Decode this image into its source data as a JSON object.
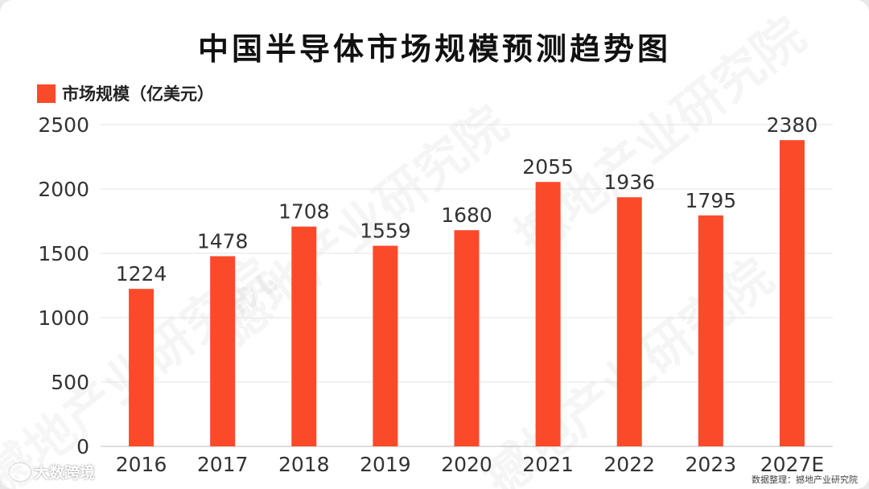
{
  "title": "中国半导体市场规模预测趋势图",
  "legend_label": "市场规模（亿美元）",
  "source": "数据整理：撼地产业研究院",
  "footer_brand": "大数跨境",
  "watermark_text": "撼地产业研究院",
  "colors": {
    "bar": "#fb4a2a",
    "grid": "#e3e3e3",
    "text": "#333333"
  },
  "chart_data": {
    "type": "bar",
    "title": "中国半导体市场规模预测趋势图",
    "categories": [
      "2016",
      "2017",
      "2018",
      "2019",
      "2020",
      "2021",
      "2022",
      "2023",
      "2027E"
    ],
    "series": [
      {
        "name": "市场规模（亿美元）",
        "values": [
          1224,
          1478,
          1708,
          1559,
          1680,
          2055,
          1936,
          1795,
          2380
        ]
      }
    ],
    "ylim": [
      0,
      2500
    ],
    "yticks": [
      0,
      500,
      1000,
      1500,
      2000,
      2500
    ],
    "grid": true,
    "legend": "top-left",
    "data_labels": true
  }
}
